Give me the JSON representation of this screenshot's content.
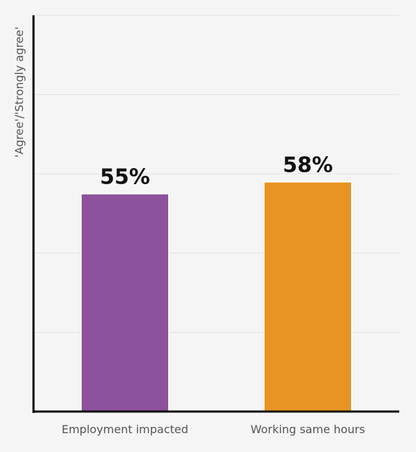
{
  "chart_data": {
    "type": "bar",
    "title": "",
    "xlabel": "",
    "ylabel": "'Agree'/'Strongly agree'",
    "ylim": [
      0,
      100
    ],
    "grid": true,
    "categories": [
      "Employment impacted",
      "Working same hours"
    ],
    "values": [
      55,
      58
    ],
    "data_labels": [
      "55%",
      "58%"
    ],
    "colors": [
      "#8e529c",
      "#e89424"
    ]
  }
}
